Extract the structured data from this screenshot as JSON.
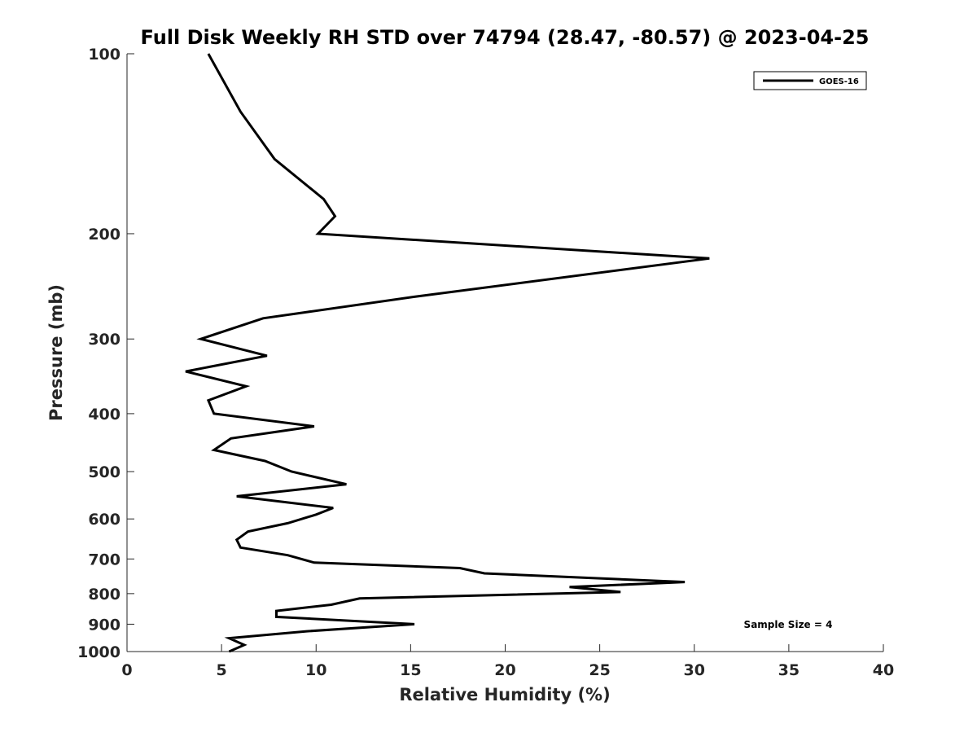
{
  "chart_data": {
    "type": "line",
    "title": "Full Disk Weekly RH STD over 74794 (28.47, -80.57) @ 2023-04-25",
    "xlabel": "Relative Humidity (%)",
    "ylabel": "Pressure (mb)",
    "xlim": [
      0,
      40
    ],
    "ylim": [
      100,
      1000
    ],
    "y_scale": "log",
    "y_inverted": true,
    "x_ticks": [
      0,
      5,
      10,
      15,
      20,
      25,
      30,
      35,
      40
    ],
    "y_ticks": [
      100,
      200,
      300,
      400,
      500,
      600,
      700,
      800,
      900,
      1000
    ],
    "grid": false,
    "legend": {
      "position": "top-right",
      "entries": [
        "GOES-16"
      ]
    },
    "annotation": "Sample Size = 4",
    "series": [
      {
        "name": "GOES-16",
        "color": "#000000",
        "points": [
          [
            4.3,
            100
          ],
          [
            6.0,
            125
          ],
          [
            7.8,
            150
          ],
          [
            10.4,
            175
          ],
          [
            11.0,
            187
          ],
          [
            10.1,
            200
          ],
          [
            30.8,
            220
          ],
          [
            15.2,
            255
          ],
          [
            7.2,
            277
          ],
          [
            3.9,
            300
          ],
          [
            7.4,
            320
          ],
          [
            3.1,
            340
          ],
          [
            6.3,
            360
          ],
          [
            4.3,
            380
          ],
          [
            4.6,
            400
          ],
          [
            9.9,
            420
          ],
          [
            5.5,
            440
          ],
          [
            4.6,
            460
          ],
          [
            7.3,
            480
          ],
          [
            8.7,
            500
          ],
          [
            11.6,
            525
          ],
          [
            5.8,
            550
          ],
          [
            10.9,
            575
          ],
          [
            10.0,
            590
          ],
          [
            8.5,
            610
          ],
          [
            6.4,
            630
          ],
          [
            5.8,
            650
          ],
          [
            6.0,
            670
          ],
          [
            8.5,
            690
          ],
          [
            9.9,
            710
          ],
          [
            17.6,
            725
          ],
          [
            18.9,
            740
          ],
          [
            29.5,
            765
          ],
          [
            23.4,
            780
          ],
          [
            26.1,
            795
          ],
          [
            12.3,
            815
          ],
          [
            10.8,
            835
          ],
          [
            7.9,
            855
          ],
          [
            7.9,
            875
          ],
          [
            15.2,
            900
          ],
          [
            9.5,
            925
          ],
          [
            5.4,
            950
          ],
          [
            6.2,
            975
          ],
          [
            5.4,
            1000
          ]
        ]
      }
    ]
  }
}
